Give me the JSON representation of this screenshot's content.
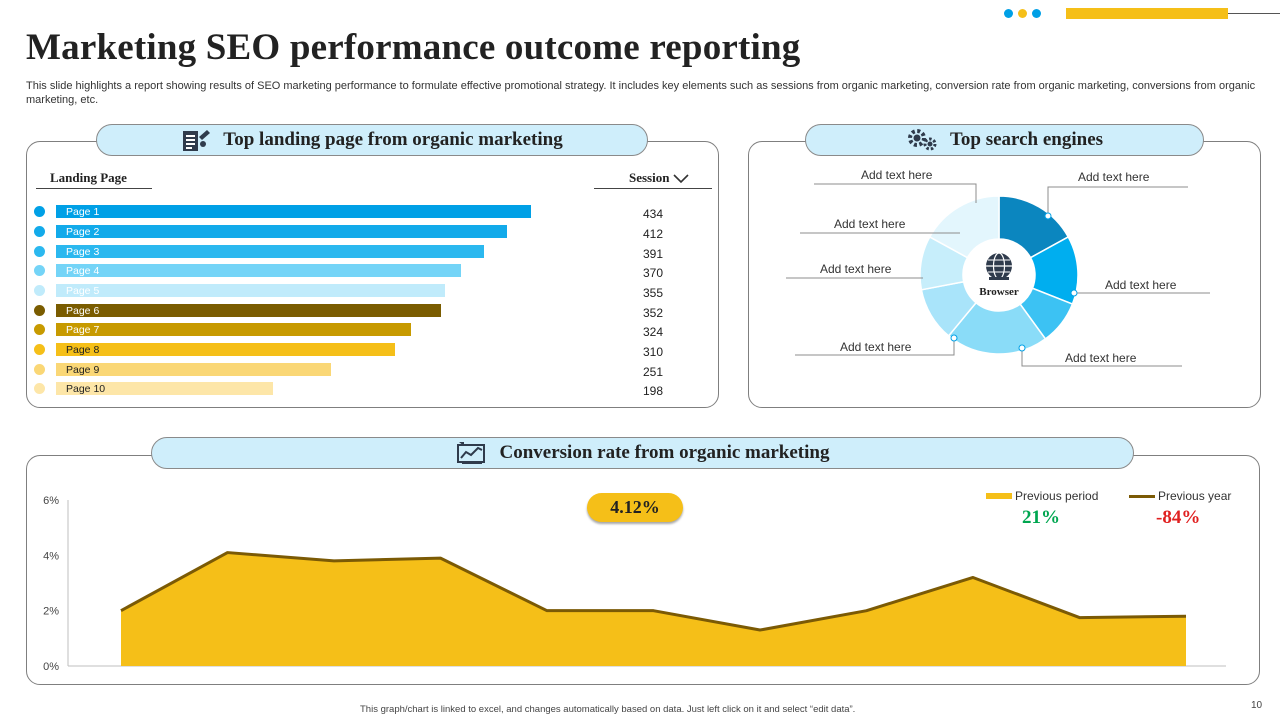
{
  "title": "Marketing SEO performance outcome reporting",
  "subtitle": "This slide highlights a report showing results of SEO marketing performance to formulate effective promotional strategy. It includes key elements such as sessions from organic marketing, conversion rate from organic marketing, conversions from organic marketing, etc.",
  "colors": {
    "blue_dark": "#00a0e6",
    "blue_mid": "#1eb4ef",
    "blue_light": "#6fd0f6",
    "blue_pale": "#c3ecfb",
    "brown_dark": "#7a5c00",
    "gold": "#c79a00",
    "yellow": "#f5bf18",
    "yellow_light": "#fad776",
    "yellow_pale": "#fde6a8",
    "line_brown": "#7b5a05",
    "green": "#00a650",
    "red": "#e02020"
  },
  "landing": {
    "heading": "Top landing page from organic marketing",
    "col_page": "Landing Page",
    "col_session": "Session"
  },
  "search": {
    "heading": "Top search engines",
    "center_label": "Browser",
    "labels": [
      "Add text here",
      "Add text here",
      "Add text here",
      "Add text here",
      "Add text here",
      "Add text here",
      "Add text here"
    ]
  },
  "conversion": {
    "heading": "Conversion rate from organic marketing",
    "kpi": "4.12%",
    "legend": [
      {
        "label": "Previous period",
        "value": "21%"
      },
      {
        "label": "Previous year",
        "value": "-84%"
      }
    ]
  },
  "chart_data": [
    {
      "type": "bar",
      "orientation": "horizontal",
      "title": "Top landing page from organic marketing",
      "xlabel": "Session",
      "ylabel": "Landing Page",
      "categories": [
        "Page 1",
        "Page 2",
        "Page 3",
        "Page 4",
        "Page 5",
        "Page 6",
        "Page 7",
        "Page 8",
        "Page 9",
        "Page 10"
      ],
      "values": [
        434,
        412,
        391,
        370,
        355,
        352,
        324,
        310,
        251,
        198
      ],
      "value_labels": [
        "434",
        "412",
        "391",
        "370",
        "355",
        "352",
        "324",
        "310",
        "251",
        "198"
      ]
    },
    {
      "type": "pie",
      "donut": true,
      "title": "Top search engines",
      "center_label": "Browser",
      "categories": [
        "Add text here",
        "Add text here",
        "Add text here",
        "Add text here",
        "Add text here",
        "Add text here",
        "Add text here"
      ],
      "values": [
        17,
        14,
        9,
        21,
        11,
        11,
        17
      ]
    },
    {
      "type": "area",
      "title": "Conversion rate from organic marketing",
      "x": [
        1,
        2,
        3,
        4,
        5,
        6,
        7,
        8,
        9,
        10,
        11
      ],
      "series": [
        {
          "name": "Conversion rate",
          "values": [
            2.0,
            4.1,
            3.8,
            3.9,
            2.0,
            2.0,
            1.3,
            2.0,
            3.2,
            1.75,
            1.8
          ]
        }
      ],
      "ylim": [
        0,
        6
      ],
      "yticks": [
        "0%",
        "2%",
        "4%",
        "6%"
      ],
      "ytick_values": [
        0,
        2,
        4,
        6
      ],
      "grid": false
    }
  ],
  "footer": "This graph/chart is linked to excel, and changes automatically based on data. Just left click on it and select “edit data”.",
  "page_number": "10"
}
